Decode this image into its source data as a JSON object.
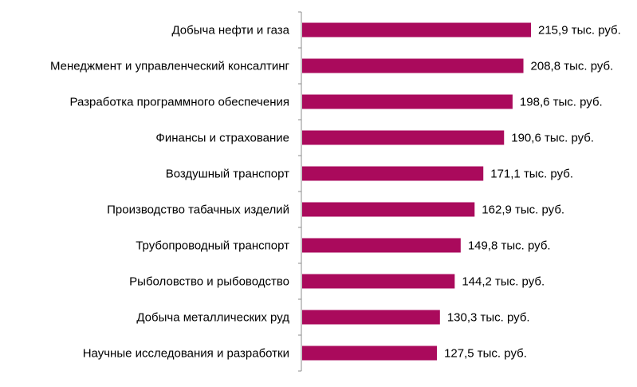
{
  "chart_data": {
    "type": "bar",
    "orientation": "horizontal",
    "title": "",
    "xlabel": "",
    "ylabel": "",
    "categories": [
      "Добыча нефти и газа",
      "Менеджмент и управленческий консалтинг",
      "Разработка программного обеспечения",
      "Финансы и страхование",
      "Воздушный транспорт",
      "Производство табачных изделий",
      "Трубопроводный транспорт",
      "Рыболовство и рыбоводство",
      "Добыча металлических руд",
      "Научные исследования и разработки"
    ],
    "values": [
      215.9,
      208.8,
      198.6,
      190.6,
      171.1,
      162.9,
      149.8,
      144.2,
      130.3,
      127.5
    ],
    "value_labels": [
      "215,9 тыс. руб.",
      "208,8 тыс. руб.",
      "198,6 тыс. руб.",
      "190,6 тыс. руб.",
      "171,1 тыс. руб.",
      "162,9 тыс. руб.",
      "149,8 тыс. руб.",
      "144,2 тыс. руб.",
      "130,3 тыс. руб.",
      "127,5 тыс. руб."
    ],
    "xlim": [
      0,
      305
    ],
    "grid": false,
    "legend": "none",
    "colors": {
      "bar": "#AA0A5C",
      "axis": "#8C8C8C"
    }
  }
}
